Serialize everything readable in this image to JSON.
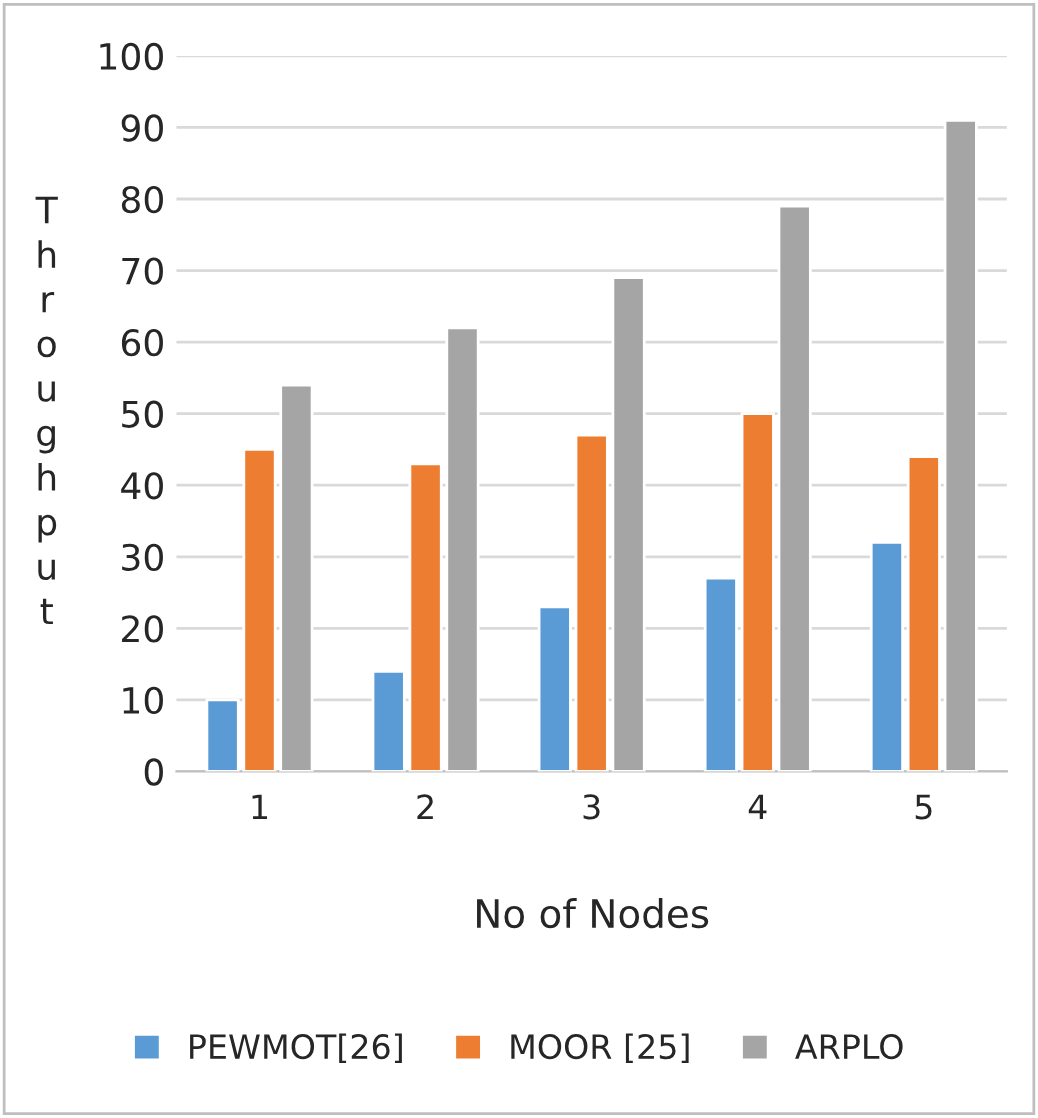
{
  "chart_data": {
    "type": "bar",
    "xlabel": "No of Nodes",
    "ylabel": "Throughput",
    "categories": [
      "1",
      "2",
      "3",
      "4",
      "5"
    ],
    "series": [
      {
        "name": "PEWMOT[26]",
        "color": "#5b9bd5",
        "values": [
          10,
          14,
          23,
          27,
          32
        ]
      },
      {
        "name": "MOOR [25]",
        "color": "#ed7d31",
        "values": [
          45,
          43,
          47,
          50,
          44
        ]
      },
      {
        "name": "ARPLO",
        "color": "#a5a5a5",
        "values": [
          54,
          62,
          69,
          79,
          91
        ]
      }
    ],
    "ylim": [
      0,
      100
    ],
    "yticks": [
      0,
      10,
      20,
      30,
      40,
      50,
      60,
      70,
      80,
      90,
      100
    ],
    "grid": "y",
    "legend": "bottom"
  }
}
